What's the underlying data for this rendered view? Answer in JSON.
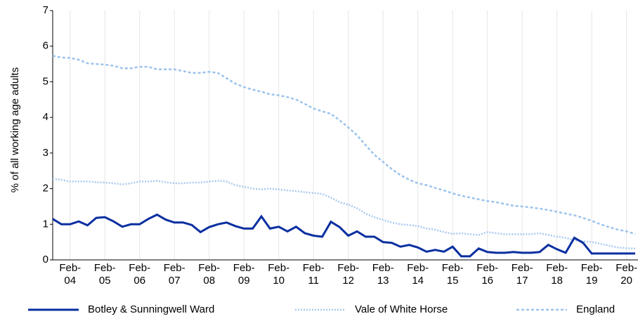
{
  "chart_data": {
    "type": "line",
    "y_label": "% of all working age adults",
    "categories": [
      null,
      null,
      "Feb-04",
      null,
      null,
      null,
      "Feb-05",
      null,
      null,
      null,
      "Feb-06",
      null,
      null,
      null,
      "Feb-07",
      null,
      null,
      null,
      "Feb-08",
      null,
      null,
      null,
      "Feb-09",
      null,
      null,
      null,
      "Feb-10",
      null,
      null,
      null,
      "Feb-11",
      null,
      null,
      null,
      "Feb-12",
      null,
      null,
      null,
      "Feb-13",
      null,
      null,
      null,
      "Feb-14",
      null,
      null,
      null,
      "Feb-15",
      null,
      null,
      null,
      "Feb-16",
      null,
      null,
      null,
      "Feb-17",
      null,
      null,
      null,
      "Feb-18",
      null,
      null,
      null,
      "Feb-19",
      null,
      null,
      null,
      "Feb-20",
      null
    ],
    "ylim": [
      0,
      7
    ],
    "yticks": [
      0,
      1,
      2,
      3,
      4,
      5,
      6,
      7
    ],
    "grid": "x",
    "legend": "bottom",
    "series": [
      {
        "name": "Botley & Sunningwell Ward",
        "color": "#0a2fa0",
        "style": "solid",
        "values": [
          1.15,
          1.0,
          1.0,
          1.08,
          0.97,
          1.18,
          1.2,
          1.08,
          0.93,
          1.0,
          1.0,
          1.15,
          1.27,
          1.13,
          1.05,
          1.05,
          0.98,
          0.78,
          0.92,
          1.0,
          1.05,
          0.95,
          0.88,
          0.88,
          1.22,
          0.88,
          0.93,
          0.8,
          0.93,
          0.75,
          0.68,
          0.65,
          1.07,
          0.92,
          0.68,
          0.8,
          0.65,
          0.65,
          0.5,
          0.48,
          0.37,
          0.42,
          0.35,
          0.23,
          0.28,
          0.23,
          0.37,
          0.1,
          0.1,
          0.32,
          0.22,
          0.2,
          0.2,
          0.22,
          0.2,
          0.2,
          0.22,
          0.42,
          0.3,
          0.2,
          0.62,
          0.48,
          0.18,
          0.18,
          0.18,
          0.18,
          0.18,
          0.18
        ]
      },
      {
        "name": "Vale of White Horse",
        "color": "#a9c9ef",
        "style": "dotted",
        "values": [
          2.28,
          2.25,
          2.2,
          2.2,
          2.2,
          2.18,
          2.17,
          2.15,
          2.12,
          2.15,
          2.2,
          2.2,
          2.22,
          2.18,
          2.15,
          2.15,
          2.17,
          2.17,
          2.2,
          2.22,
          2.2,
          2.1,
          2.05,
          2.0,
          1.98,
          2.0,
          1.98,
          1.95,
          1.93,
          1.9,
          1.88,
          1.85,
          1.75,
          1.62,
          1.55,
          1.45,
          1.3,
          1.2,
          1.12,
          1.05,
          1.0,
          0.98,
          0.95,
          0.88,
          0.85,
          0.78,
          0.73,
          0.75,
          0.72,
          0.7,
          0.78,
          0.75,
          0.72,
          0.72,
          0.72,
          0.72,
          0.75,
          0.7,
          0.65,
          0.62,
          0.55,
          0.52,
          0.5,
          0.45,
          0.4,
          0.35,
          0.33,
          0.32
        ]
      },
      {
        "name": "England",
        "color": "#9cc3ec",
        "style": "dashed",
        "values": [
          5.73,
          5.68,
          5.67,
          5.62,
          5.52,
          5.5,
          5.48,
          5.45,
          5.38,
          5.38,
          5.42,
          5.42,
          5.35,
          5.35,
          5.35,
          5.3,
          5.25,
          5.25,
          5.28,
          5.25,
          5.1,
          4.95,
          4.85,
          4.78,
          4.72,
          4.65,
          4.62,
          4.57,
          4.5,
          4.38,
          4.25,
          4.17,
          4.1,
          3.92,
          3.72,
          3.5,
          3.22,
          2.95,
          2.75,
          2.55,
          2.38,
          2.25,
          2.15,
          2.1,
          2.02,
          1.95,
          1.87,
          1.8,
          1.75,
          1.7,
          1.65,
          1.62,
          1.57,
          1.52,
          1.5,
          1.47,
          1.44,
          1.4,
          1.35,
          1.3,
          1.25,
          1.18,
          1.1,
          1.0,
          0.92,
          0.85,
          0.8,
          0.73
        ]
      }
    ]
  }
}
